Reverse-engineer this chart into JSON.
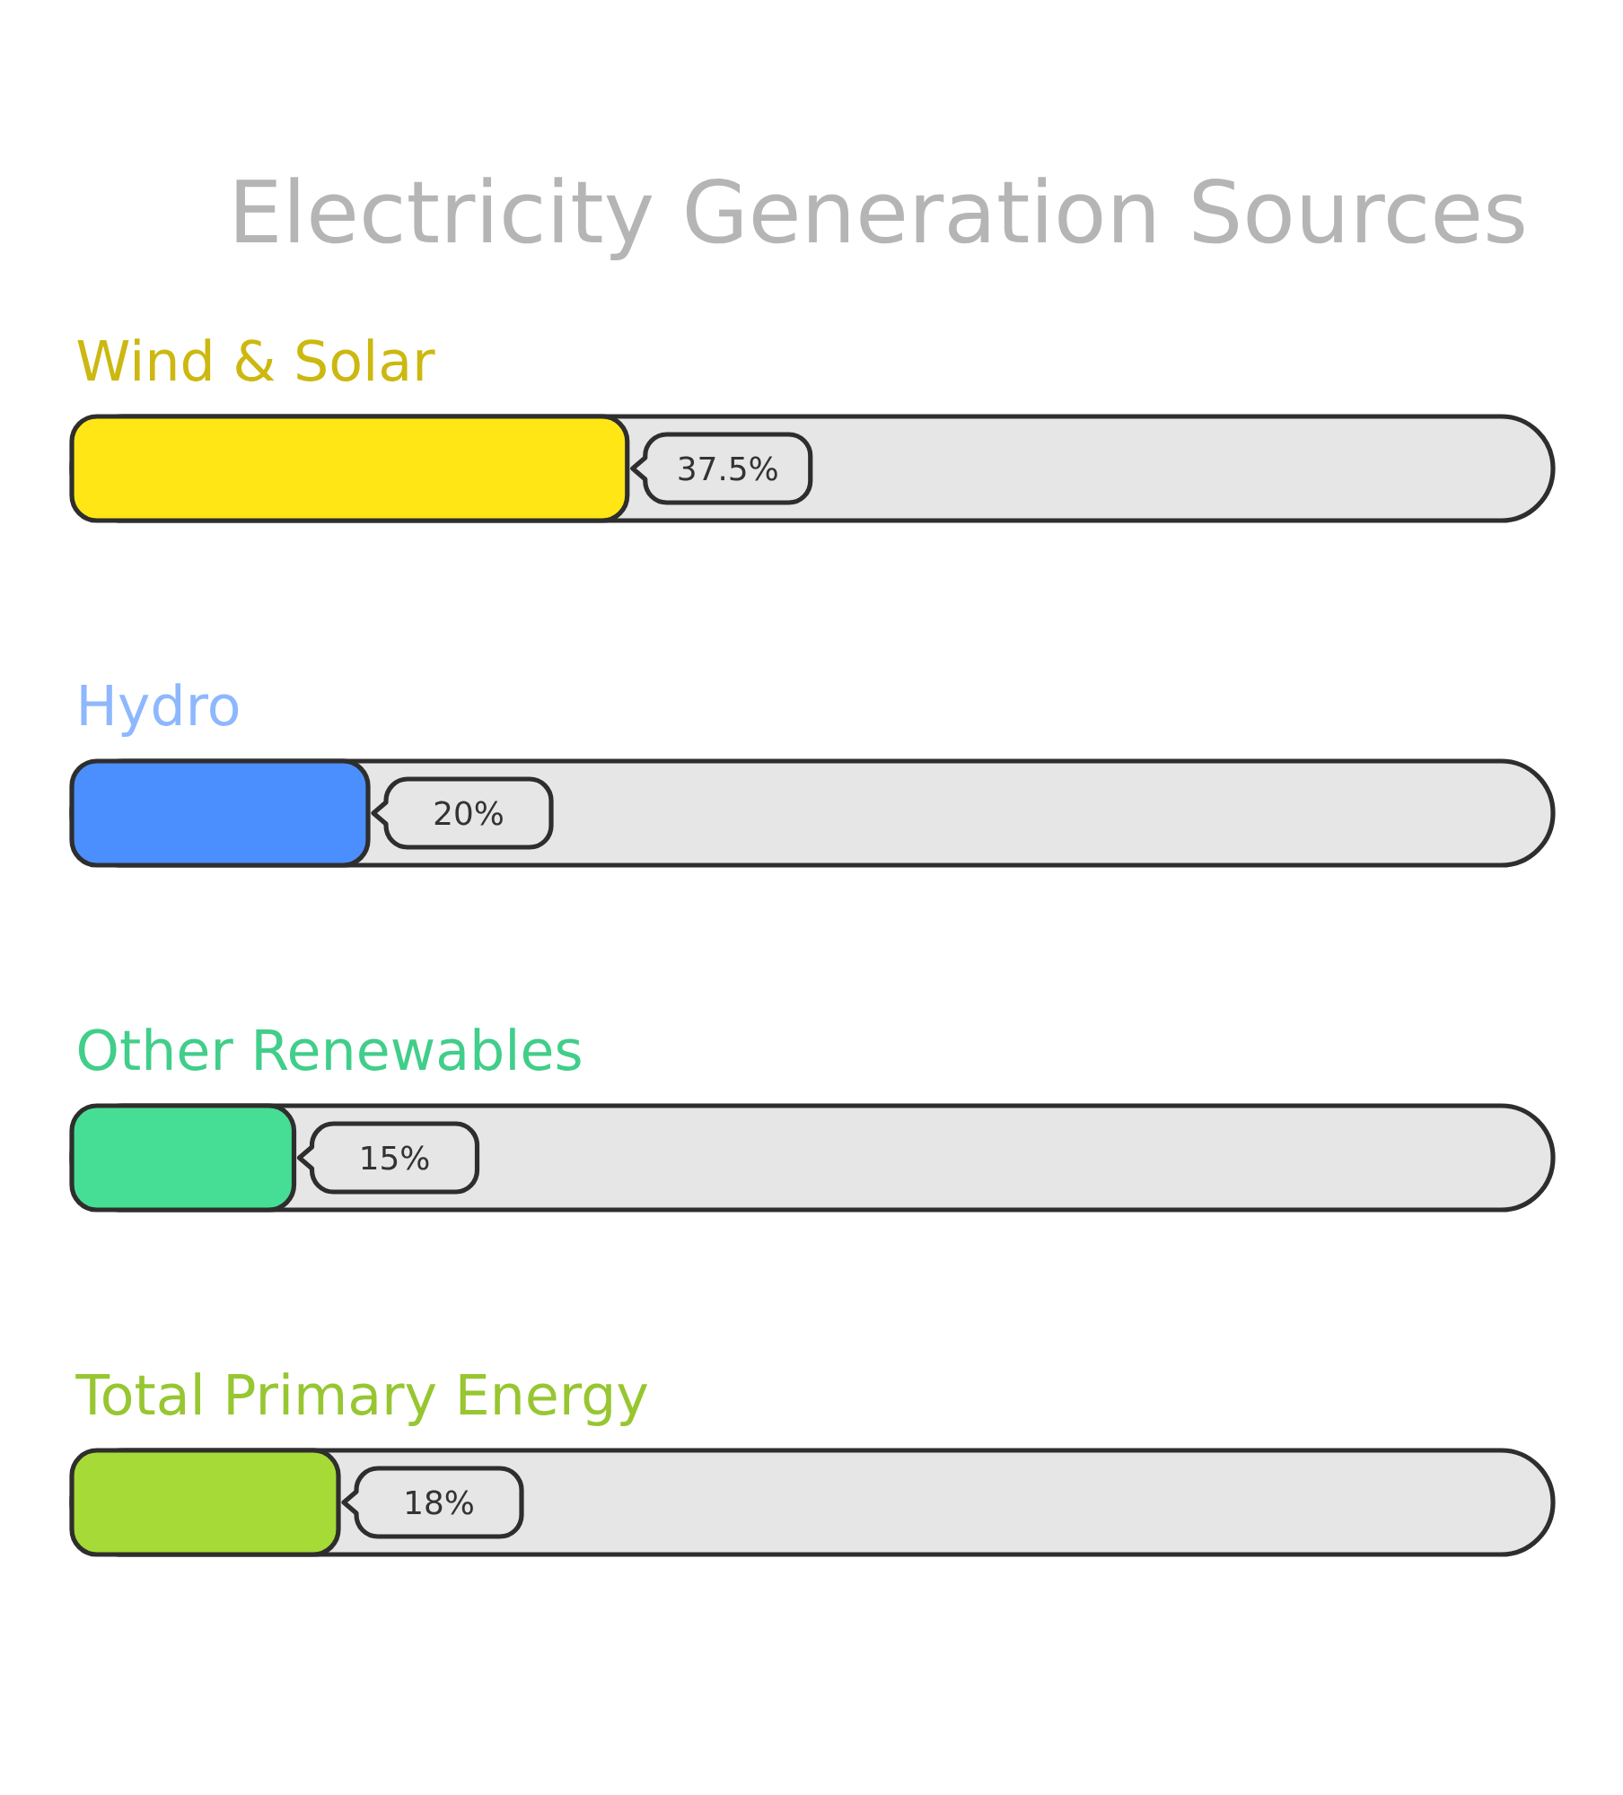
{
  "chart_data": {
    "type": "bar",
    "orientation": "horizontal",
    "title": "Electricity Generation Sources",
    "categories": [
      "Wind & Solar",
      "Hydro",
      "Other Renewables",
      "Total Primary Energy"
    ],
    "values": [
      37.5,
      20,
      15,
      18
    ],
    "colors": [
      "#ffe614",
      "#4b8ffe",
      "#46de94",
      "#a6da36"
    ],
    "value_labels": [
      "37.5%",
      "20%",
      "15%",
      "18%"
    ],
    "xlim": [
      0,
      100
    ]
  }
}
